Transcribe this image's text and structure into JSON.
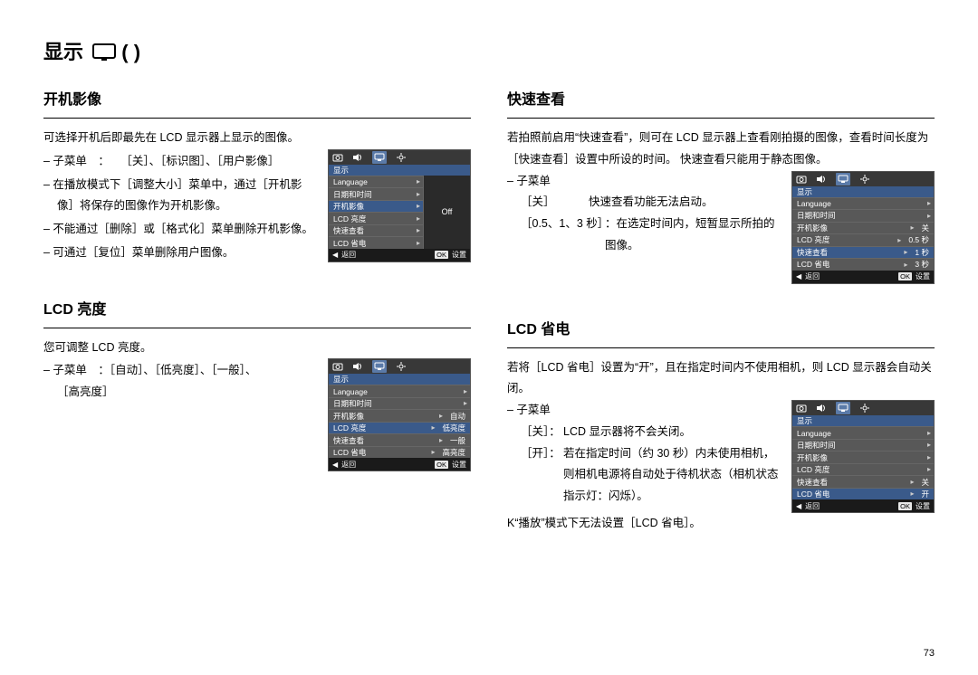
{
  "page_number": "73",
  "page_title": "显示",
  "colors": {
    "menu_bg": "#424242",
    "menu_row_bg": "#585858",
    "menu_sel_bg": "#3a5a8a",
    "menu_border": "#666666",
    "menu_footer_bg": "#1a1a1a",
    "menu_preview_bg": "#2a2a2a",
    "text": "#000000",
    "menu_text": "#ffffff"
  },
  "sections": {
    "s1": {
      "title": "开机影像",
      "intro": "可选择开机后即最先在 LCD 显示器上显示的图像。",
      "items": [
        "– 子菜单 ： ［关］、［标识图］、［用户影像］",
        "– 在播放模式下［调整大小］菜单中，通过［开机影像］将保存的图像作为开机影像。",
        "– 不能通过［删除］或［格式化］菜单删除开机影像。",
        "– 可通过［复位］菜单删除用户图像。"
      ],
      "menu": {
        "header": "显示",
        "rows": [
          "Language",
          "日期和时间",
          "开机影像",
          "LCD 亮度",
          "快速查看",
          "LCD 省电"
        ],
        "selected": "开机影像",
        "preview": "Off",
        "footer_back": "返回",
        "footer_ok": "OK",
        "footer_set": "设置"
      }
    },
    "s2": {
      "title": "LCD 亮度",
      "intro": "您可调整 LCD 亮度。",
      "sub_line": "– 子菜单 ：［自动］、［低亮度］、［一般］、     ［高亮度］",
      "menu": {
        "header": "显示",
        "rows": [
          "Language",
          "日期和时间",
          "开机影像",
          "LCD 亮度",
          "快速查看",
          "LCD 省电"
        ],
        "selected": "LCD 亮度",
        "values": {
          "开机影像": "自动",
          "LCD 亮度": "低亮度",
          "快速查看": "一般",
          "LCD 省电": "高亮度"
        },
        "footer_back": "返回",
        "footer_ok": "OK",
        "footer_set": "设置"
      }
    },
    "s3": {
      "title": "快速查看",
      "intro": "若拍照前启用“快速查看”，则可在 LCD 显示器上查看刚拍摄的图像，查看时间长度为［快速查看］设置中所设的时间。 快速查看只能用于静态图像。",
      "sub_label": "– 子菜单",
      "kv": [
        {
          "k": "［关］",
          "v": "快速查看功能无法启动。"
        },
        {
          "k": "［0.5、1、3 秒］",
          "v": "：在选定时间内，短暂显示所拍的图像。"
        }
      ],
      "menu": {
        "header": "显示",
        "rows": [
          "Language",
          "日期和时间",
          "开机影像",
          "LCD 亮度",
          "快速查看",
          "LCD 省电"
        ],
        "selected": "快速查看",
        "values": {
          "开机影像": "关",
          "LCD 亮度": "0.5 秒",
          "快速查看": "1 秒",
          "LCD 省电": "3 秒"
        },
        "footer_back": "返回",
        "footer_ok": "OK",
        "footer_set": "设置"
      }
    },
    "s4": {
      "title": "LCD 省电",
      "intro": "若将［LCD 省电］设置为“开”，且在指定时间内不使用相机，则 LCD 显示器会自动关闭。",
      "sub_label": "– 子菜单",
      "kv": [
        {
          "k": "［关］：",
          "v": "LCD 显示器将不会关闭。"
        },
        {
          "k": "［开］：",
          "v": "若在指定时间（约 30 秒）内未使用相机，则相机电源将自动处于待机状态（相机状态指示灯：闪烁）。"
        }
      ],
      "note": "K“播放”模式下无法设置［LCD 省电］。",
      "menu": {
        "header": "显示",
        "rows": [
          "Language",
          "日期和时间",
          "开机影像",
          "LCD 亮度",
          "快速查看",
          "LCD 省电"
        ],
        "selected": "LCD 省电",
        "values": {
          "快速查看": "关",
          "LCD 省电": "开"
        },
        "footer_back": "返回",
        "footer_ok": "OK",
        "footer_set": "设置"
      }
    }
  }
}
